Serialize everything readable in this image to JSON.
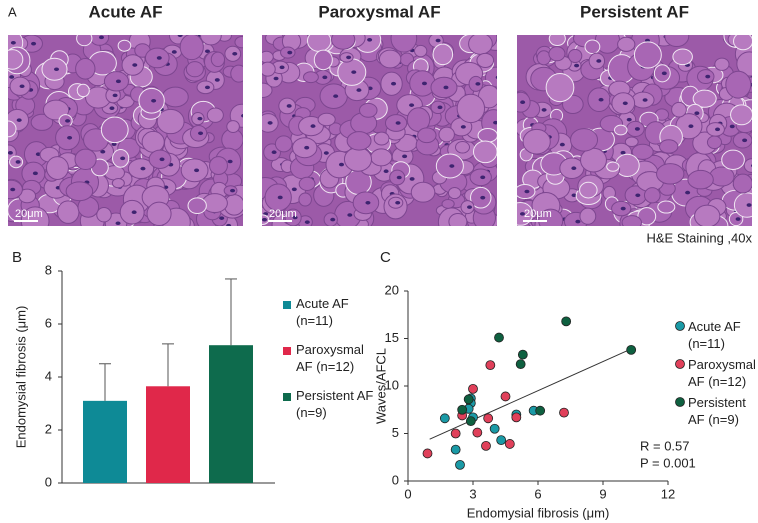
{
  "panel_a": {
    "label": "A",
    "images": [
      {
        "title": "Acute AF",
        "scale_bar": "20μm"
      },
      {
        "title": "Paroxysmal AF",
        "scale_bar": "20μm"
      },
      {
        "title": "Persistent AF",
        "scale_bar": "20μm"
      }
    ],
    "caption": "H&E Staining ,40x"
  },
  "chart_data": [
    {
      "type": "bar",
      "panel_label": "B",
      "y_label": "Endomysial fibrosis (μm)",
      "ylim": [
        0,
        8
      ],
      "yticks": [
        0,
        2,
        4,
        6,
        8
      ],
      "series": [
        {
          "name": "Acute AF (n=11)",
          "color": "#0e8a96",
          "values": [
            3.1
          ],
          "errors": [
            1.4
          ]
        },
        {
          "name": "Paroxysmal AF (n=12)",
          "color": "#e0284a",
          "values": [
            3.65
          ],
          "errors": [
            1.6
          ]
        },
        {
          "name": "Persistent AF (n=9)",
          "color": "#0e6b4d",
          "values": [
            5.2
          ],
          "errors": [
            2.5
          ]
        }
      ]
    },
    {
      "type": "scatter",
      "panel_label": "C",
      "x_label": "Endomysial fibrosis (μm)",
      "y_label": "Waves/AFCL",
      "xlim": [
        0,
        12
      ],
      "xticks": [
        0,
        3,
        6,
        9,
        12
      ],
      "ylim": [
        0,
        20
      ],
      "yticks": [
        0,
        5,
        10,
        15,
        20
      ],
      "series": [
        {
          "name": "Acute AF (n=11)",
          "color": "#1a9aa6",
          "x": [
            1.7,
            2.9,
            2.9,
            2.8,
            2.2,
            2.4,
            3.0,
            4.0,
            4.3,
            5.0,
            5.8
          ],
          "y": [
            6.6,
            8.7,
            8.2,
            7.6,
            3.3,
            1.7,
            6.7,
            5.5,
            4.3,
            7.0,
            7.4
          ]
        },
        {
          "name": "Paroxysmal AF (n=12)",
          "color": "#e0405a",
          "x": [
            0.9,
            2.2,
            2.5,
            3.0,
            3.2,
            3.6,
            3.7,
            3.8,
            4.5,
            4.7,
            5.0,
            7.2
          ],
          "y": [
            2.9,
            5.0,
            6.9,
            9.7,
            5.1,
            3.7,
            6.6,
            12.2,
            8.9,
            3.9,
            6.7,
            7.2
          ]
        },
        {
          "name": "Persistent AF (n=9)",
          "color": "#0e6040",
          "x": [
            2.5,
            2.9,
            4.2,
            5.2,
            5.3,
            6.1,
            7.3,
            10.3,
            2.8
          ],
          "y": [
            7.5,
            6.3,
            15.1,
            12.3,
            13.3,
            7.4,
            16.8,
            13.8,
            8.6
          ]
        }
      ],
      "trend_line": {
        "x": [
          1.0,
          10.3
        ],
        "y": [
          4.4,
          13.9
        ]
      },
      "annotations": [
        "R = 0.57",
        "P = 0.001"
      ]
    }
  ]
}
